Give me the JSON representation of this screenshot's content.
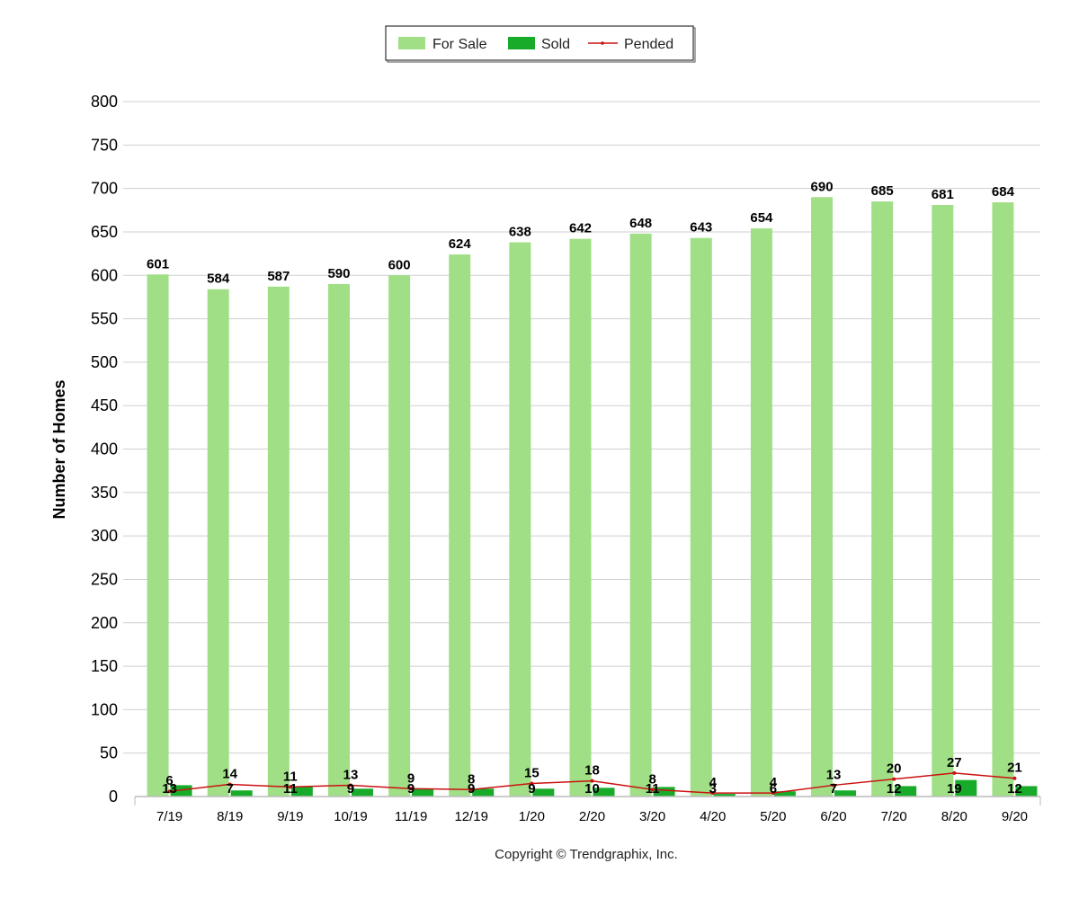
{
  "chart_data": {
    "type": "bar",
    "ylabel": "Number of Homes",
    "ylim": [
      0,
      800
    ],
    "yticks": [
      0,
      50,
      100,
      150,
      200,
      250,
      300,
      350,
      400,
      450,
      500,
      550,
      600,
      650,
      700,
      750,
      800
    ],
    "grid": true,
    "legend_position": "top-center",
    "categories": [
      "7/19",
      "8/19",
      "9/19",
      "10/19",
      "11/19",
      "12/19",
      "1/20",
      "2/20",
      "3/20",
      "4/20",
      "5/20",
      "6/20",
      "7/20",
      "8/20",
      "9/20"
    ],
    "series": [
      {
        "name": "For Sale",
        "kind": "bar",
        "color": "#a0df86",
        "values": [
          601,
          584,
          587,
          590,
          600,
          624,
          638,
          642,
          648,
          643,
          654,
          690,
          685,
          681,
          684
        ]
      },
      {
        "name": "Sold",
        "kind": "bar",
        "color": "#18ab2a",
        "values": [
          13,
          7,
          11,
          9,
          9,
          9,
          9,
          10,
          11,
          3,
          6,
          7,
          12,
          19,
          12
        ]
      },
      {
        "name": "Pended",
        "kind": "line",
        "color": "#cc1111",
        "values": [
          6,
          14,
          11,
          13,
          9,
          8,
          15,
          18,
          8,
          4,
          4,
          13,
          20,
          27,
          21
        ]
      }
    ],
    "footer": "Copyright © Trendgraphix, Inc."
  }
}
